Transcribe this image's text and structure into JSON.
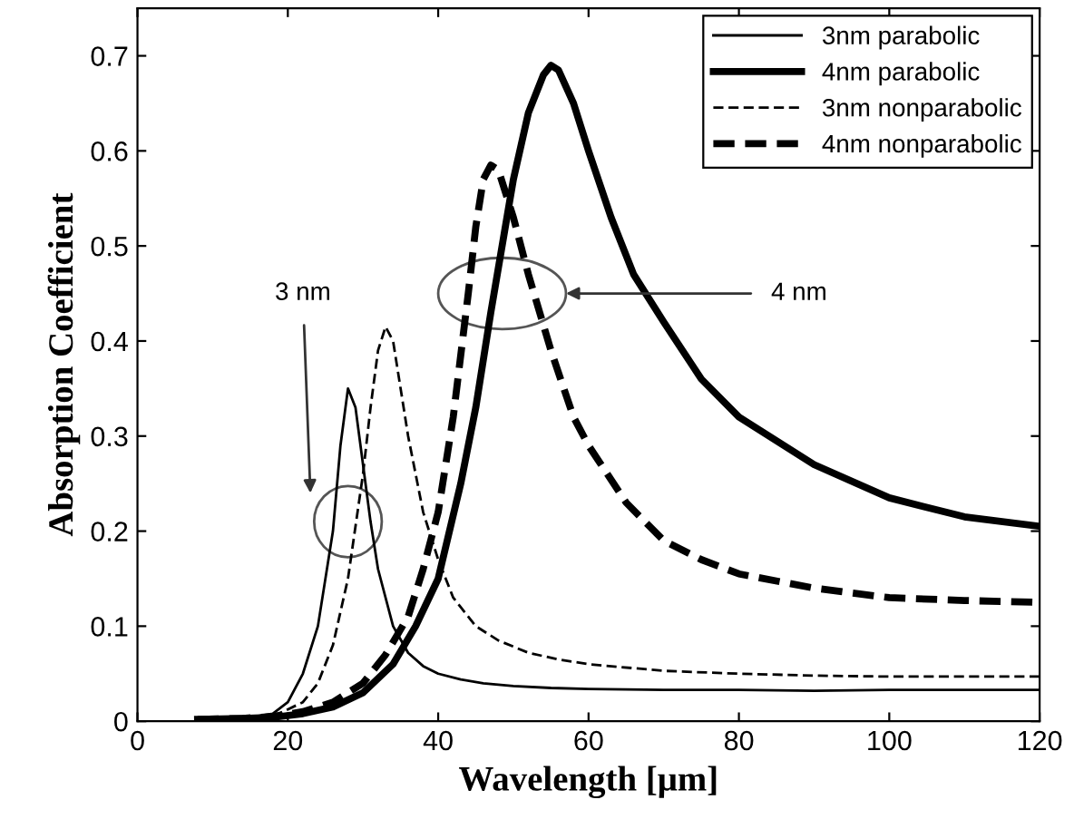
{
  "chart_data": {
    "type": "line",
    "xlabel": "Wavelength [μm]",
    "ylabel": "Absorption Coefficient",
    "xlim": [
      0,
      120
    ],
    "xticks": [
      0,
      20,
      40,
      60,
      80,
      100,
      120
    ],
    "ylim": [
      0,
      0.75
    ],
    "yticks": [
      0,
      0.1,
      0.2,
      0.3,
      0.4,
      0.5,
      0.6,
      0.7
    ],
    "grid": false,
    "legend": "top right",
    "marker": "none",
    "annotations": [
      "3 nm",
      "4 nm"
    ],
    "series": [
      {
        "name": "3nm parabolic",
        "color": "#000000",
        "line_style": "solid",
        "x": [
          8,
          14,
          18,
          20,
          22,
          24,
          26,
          27,
          28,
          29,
          30,
          31,
          32,
          34,
          36,
          38,
          40,
          43,
          46,
          50,
          55,
          60,
          70,
          80,
          90,
          100,
          110,
          120
        ],
        "values": [
          0.002,
          0.003,
          0.008,
          0.02,
          0.05,
          0.1,
          0.2,
          0.29,
          0.35,
          0.33,
          0.27,
          0.21,
          0.16,
          0.1,
          0.072,
          0.058,
          0.05,
          0.044,
          0.04,
          0.037,
          0.035,
          0.034,
          0.033,
          0.033,
          0.032,
          0.033,
          0.033,
          0.033
        ]
      },
      {
        "name": "4nm parabolic",
        "color": "#000000",
        "line_style": "solid",
        "x": [
          8,
          14,
          18,
          22,
          26,
          30,
          34,
          37,
          40,
          43,
          45,
          47,
          50,
          52,
          54,
          55,
          56,
          58,
          60,
          63,
          66,
          70,
          75,
          80,
          90,
          100,
          110,
          120
        ],
        "values": [
          0.002,
          0.003,
          0.004,
          0.008,
          0.015,
          0.03,
          0.06,
          0.1,
          0.15,
          0.25,
          0.33,
          0.43,
          0.57,
          0.64,
          0.68,
          0.69,
          0.685,
          0.65,
          0.6,
          0.53,
          0.47,
          0.42,
          0.36,
          0.32,
          0.27,
          0.235,
          0.215,
          0.205
        ]
      },
      {
        "name": "3nm nonparabolic",
        "color": "#000000",
        "line_style": "dashed",
        "x": [
          8,
          14,
          18,
          22,
          24,
          26,
          28,
          30,
          31,
          32,
          33,
          34,
          35,
          36,
          38,
          40,
          42,
          45,
          48,
          52,
          56,
          60,
          70,
          80,
          90,
          100,
          110,
          120
        ],
        "values": [
          0.002,
          0.003,
          0.005,
          0.02,
          0.04,
          0.08,
          0.15,
          0.26,
          0.33,
          0.39,
          0.415,
          0.4,
          0.35,
          0.3,
          0.22,
          0.17,
          0.13,
          0.1,
          0.085,
          0.072,
          0.065,
          0.06,
          0.053,
          0.05,
          0.048,
          0.047,
          0.047,
          0.047
        ]
      },
      {
        "name": "4nm nonparabolic",
        "color": "#000000",
        "line_style": "dashed",
        "x": [
          8,
          14,
          18,
          22,
          26,
          30,
          33,
          36,
          38,
          40,
          42,
          44,
          45,
          46,
          47,
          48,
          50,
          52,
          55,
          58,
          60,
          65,
          70,
          75,
          80,
          90,
          100,
          110,
          120
        ],
        "values": [
          0.002,
          0.003,
          0.005,
          0.01,
          0.02,
          0.04,
          0.07,
          0.11,
          0.16,
          0.22,
          0.32,
          0.45,
          0.52,
          0.57,
          0.585,
          0.58,
          0.53,
          0.47,
          0.39,
          0.32,
          0.29,
          0.23,
          0.19,
          0.17,
          0.155,
          0.14,
          0.13,
          0.127,
          0.125
        ]
      }
    ]
  }
}
